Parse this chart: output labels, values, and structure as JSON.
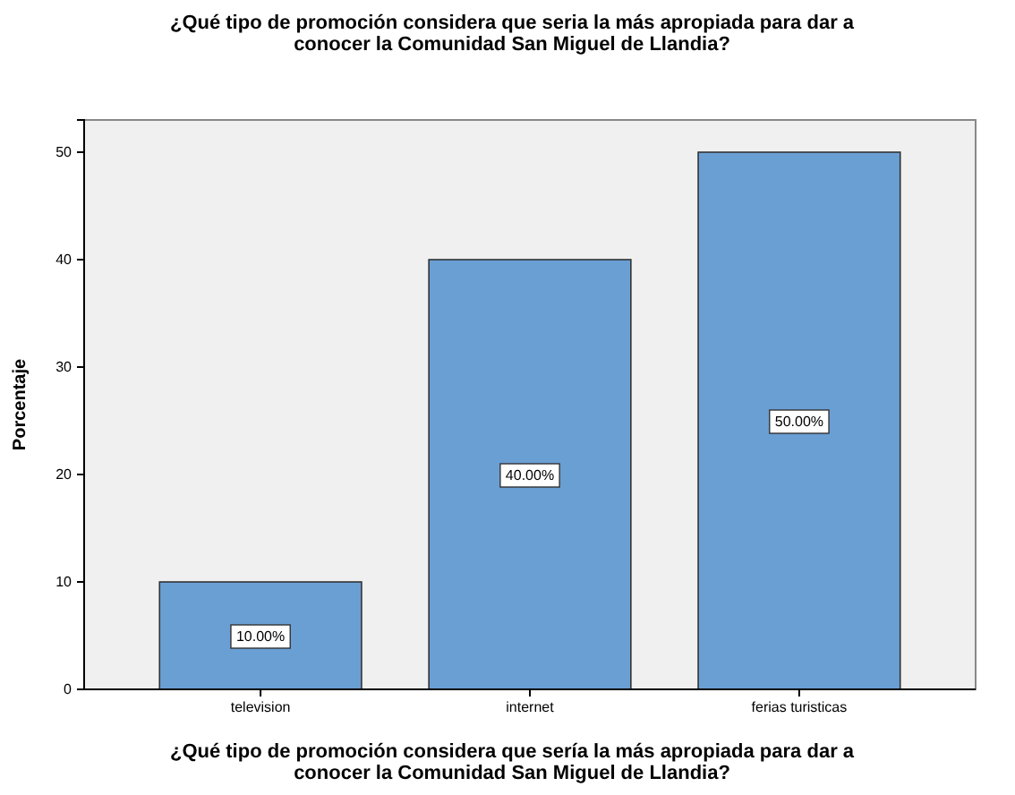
{
  "chart_data": {
    "type": "bar",
    "title": "¿Qué tipo de promoción considera que seria la más apropiada para dar a conocer la Comunidad San Miguel de Llandia?",
    "xlabel": "¿Qué tipo de promoción considera que sería la más apropiada para dar a conocer la Comunidad San Miguel de Llandia?",
    "ylabel": "Porcentaje",
    "categories": [
      "television",
      "internet",
      "ferias turisticas"
    ],
    "values": [
      10,
      40,
      50
    ],
    "value_labels": [
      "10.00%",
      "40.00%",
      "50.00%"
    ],
    "color": "#6a9fd4",
    "ylim": [
      0,
      53
    ],
    "yticks": [
      0,
      10,
      20,
      30,
      40,
      50
    ],
    "grid": false
  }
}
